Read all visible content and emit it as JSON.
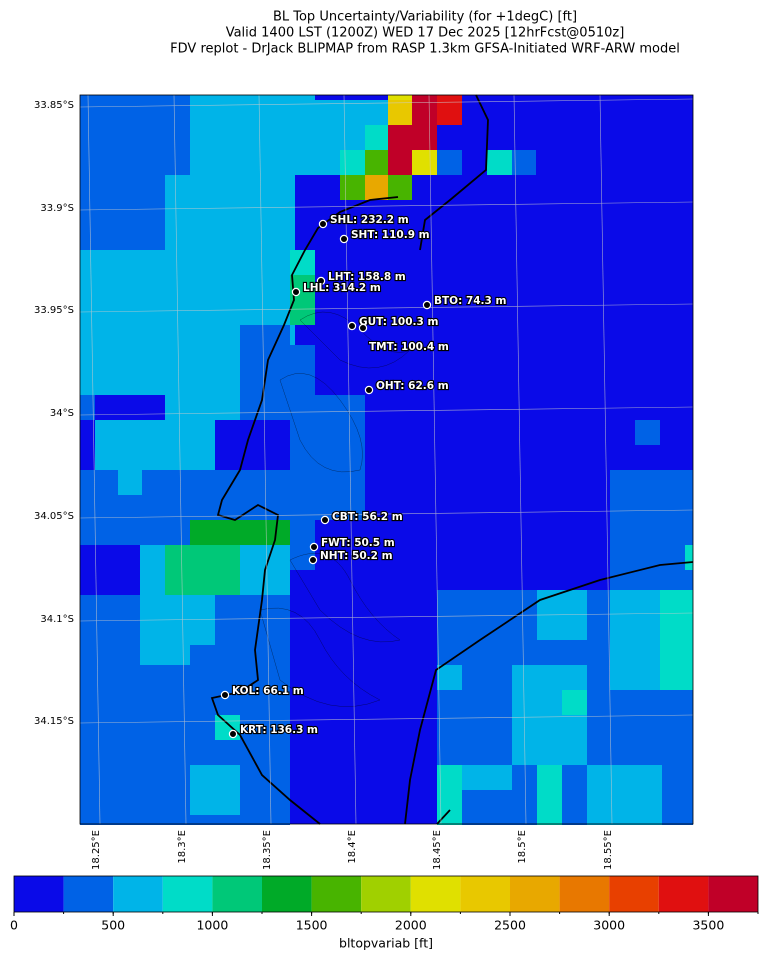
{
  "header": {
    "title_lines": [
      "BL Top Uncertainty/Variability (for +1degC) [ft]",
      "Valid 1400 LST (1200Z) WED 17 Dec 2025 [12hrFcst@0510z]",
      "FDV replot - DrJack BLIPMAP from RASP 1.3km GFSA-Initiated WRF-ARW model"
    ]
  },
  "map": {
    "lat_labels": [
      "33.85°S",
      "33.9°S",
      "33.95°S",
      "34°S",
      "34.05°S",
      "34.1°S",
      "34.15°S"
    ],
    "lon_labels": [
      "18.25°E",
      "18.3°E",
      "18.35°E",
      "18.4°E",
      "18.45°E",
      "18.5°E",
      "18.55°E"
    ],
    "stations": [
      "SHL: 232.2 m",
      "SHT: 110.9 m",
      "LHT: 158.8 m",
      "LHL: 314.2 m",
      "BTO: 74.3 m",
      "GUT: 100.3 m",
      "TMT: 100.4 m",
      "OHT: 62.6 m",
      "CBT: 56.2 m",
      "FWT: 50.5 m",
      "NHT: 50.2 m",
      "KOL: 66.1 m",
      "KRT: 136.3 m"
    ]
  },
  "colorbar": {
    "label": "bltopvariab [ft]",
    "range": [
      0,
      3750
    ],
    "levels": [
      0,
      250,
      500,
      750,
      1000,
      1250,
      1500,
      1750,
      2000,
      2250,
      2500,
      2750,
      3000,
      3250,
      3500,
      3750
    ],
    "ticks": [
      0,
      500,
      1000,
      1500,
      2000,
      2500,
      3000,
      3500
    ],
    "colors": [
      "#0a0ae8",
      "#0062e6",
      "#00b4e8",
      "#00dcc8",
      "#00c878",
      "#00aa28",
      "#48b400",
      "#a0d000",
      "#e0e000",
      "#e8c800",
      "#e8a800",
      "#e87800",
      "#e84000",
      "#e01010",
      "#c00028"
    ]
  }
}
